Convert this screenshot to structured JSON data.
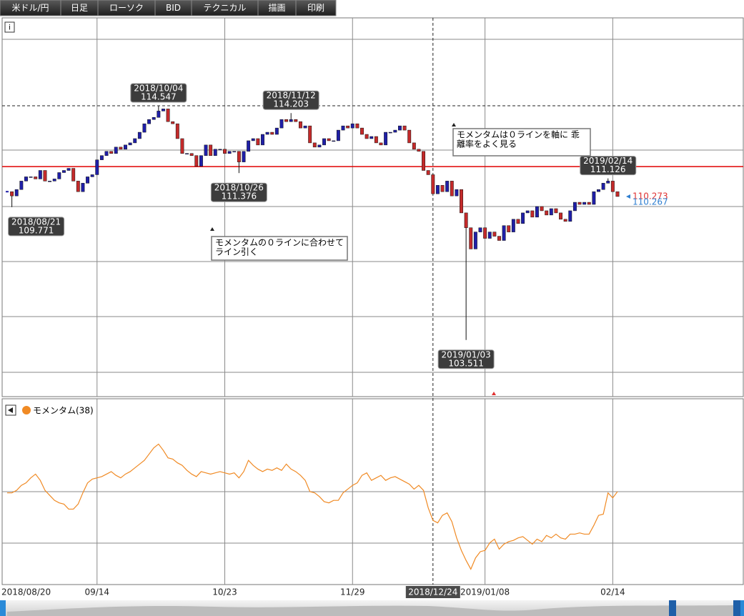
{
  "toolbar": [
    "米ドル/円",
    "日足",
    "ローソク",
    "BID",
    "テクニカル",
    "描画",
    "印刷"
  ],
  "chart_data": {
    "type": "candlestick",
    "categories": [
      "2018/08/20",
      null,
      null,
      null,
      null,
      null,
      null,
      null,
      null,
      null,
      null,
      null,
      null,
      null,
      null,
      null,
      null,
      null,
      null,
      "09/14",
      null,
      null,
      null,
      null,
      null,
      null,
      null,
      null,
      null,
      null,
      null,
      null,
      null,
      null,
      null,
      null,
      null,
      null,
      null,
      null,
      null,
      null,
      null,
      null,
      null,
      null,
      "10/23",
      null,
      null,
      null,
      null,
      null,
      null,
      null,
      null,
      null,
      null,
      null,
      null,
      null,
      null,
      null,
      null,
      null,
      null,
      null,
      null,
      null,
      null,
      null,
      null,
      null,
      null,
      "11/29",
      null,
      null,
      null,
      null,
      null,
      null,
      null,
      null,
      null,
      null,
      null,
      null,
      null,
      null,
      null,
      null,
      "2018/12/24",
      null,
      null,
      null,
      null,
      null,
      null,
      null,
      null,
      null,
      null,
      "2019/01/08",
      null,
      null,
      null,
      null,
      null,
      null,
      null,
      null,
      null,
      null,
      null,
      null,
      null,
      null,
      null,
      null,
      null,
      null,
      null,
      null,
      null,
      null,
      null,
      null,
      null,
      null,
      "02/14",
      null
    ],
    "cursor": "2018/12/24",
    "close": [
      110.5,
      110.3,
      110.6,
      111.0,
      111.2,
      111.2,
      111.1,
      111.5,
      111.0,
      111.0,
      111.1,
      111.4,
      111.5,
      111.6,
      111.0,
      110.5,
      110.9,
      111.2,
      111.3,
      112.0,
      112.2,
      112.4,
      112.3,
      112.6,
      112.5,
      112.7,
      112.8,
      113.0,
      113.3,
      113.7,
      113.9,
      114.0,
      114.3,
      114.4,
      113.8,
      113.7,
      113.0,
      112.3,
      112.3,
      112.2,
      111.7,
      112.2,
      112.7,
      112.2,
      112.5,
      112.5,
      112.3,
      112.4,
      112.4,
      111.9,
      112.4,
      112.9,
      113.0,
      112.7,
      113.2,
      113.3,
      113.2,
      113.5,
      113.9,
      113.8,
      113.9,
      113.8,
      113.5,
      113.6,
      112.8,
      112.6,
      112.7,
      113.0,
      112.9,
      112.9,
      113.4,
      113.6,
      113.5,
      113.7,
      113.5,
      113.2,
      113.0,
      113.1,
      112.8,
      112.7,
      113.3,
      113.3,
      113.4,
      113.6,
      113.4,
      112.8,
      112.5,
      112.4,
      111.5,
      111.3,
      110.4,
      110.8,
      110.5,
      111.0,
      110.3,
      110.6,
      109.5,
      108.8,
      107.8,
      108.6,
      108.8,
      108.3,
      108.6,
      108.4,
      108.2,
      108.9,
      108.6,
      109.2,
      109.0,
      109.5,
      109.6,
      109.3,
      109.8,
      109.6,
      109.4,
      109.7,
      109.5,
      109.2,
      109.1,
      109.6,
      110.0,
      109.9,
      110.0,
      109.9,
      110.5,
      110.6,
      110.9,
      111.0,
      110.5,
      110.273
    ],
    "up_color": "#1f1fa8",
    "down_color": "#c42a2a",
    "ylim": [
      100.91,
      118.69
    ],
    "hline": {
      "value": 111.68,
      "color": "#e00000"
    },
    "annotations": [
      {
        "date": "2018/10/04",
        "value": 114.547
      },
      {
        "date": "2018/11/12",
        "value": 114.203
      },
      {
        "date": "2018/10/26",
        "value": 111.376
      },
      {
        "date": "2018/08/21",
        "value": 109.771
      },
      {
        "date": "2019/01/03",
        "value": 103.511
      },
      {
        "date": "2019/02/14",
        "value": 111.126
      }
    ],
    "price_labels": [
      {
        "value": 110.273,
        "color": "#e03030"
      },
      {
        "value": 110.267,
        "color": "#2f7fd0"
      }
    ],
    "notes": [
      [
        "モメンタムの０ラインに合わせて",
        "ライン引く"
      ],
      [
        "モメンタムは０ラインを軸に 乖",
        "離率をよく見る"
      ]
    ],
    "indicator": {
      "type": "line",
      "name": "モメンタム(38)",
      "color": "#f08a24",
      "baseline": 0,
      "ylim": [
        -7.43,
        7.31
      ],
      "values": [
        -0.1,
        -0.1,
        0.1,
        0.5,
        0.7,
        1.1,
        1.4,
        0.9,
        0.1,
        -0.3,
        -0.7,
        -0.9,
        -1.0,
        -1.4,
        -1.4,
        -1.0,
        -0.1,
        0.7,
        1.0,
        1.1,
        1.2,
        1.4,
        1.6,
        1.3,
        1.1,
        1.4,
        1.6,
        1.9,
        2.2,
        2.5,
        3.0,
        3.5,
        3.8,
        3.3,
        2.7,
        2.6,
        2.3,
        2.1,
        1.7,
        1.4,
        1.2,
        1.6,
        1.5,
        1.4,
        1.5,
        1.6,
        1.5,
        1.4,
        1.5,
        1.1,
        1.6,
        2.5,
        2.1,
        1.8,
        1.6,
        1.8,
        1.7,
        1.9,
        1.7,
        2.2,
        1.8,
        1.6,
        1.3,
        0.9,
        0.0,
        -0.1,
        -0.4,
        -0.8,
        -0.9,
        -0.7,
        -0.7,
        -0.1,
        0.2,
        0.5,
        0.7,
        1.3,
        1.5,
        0.9,
        1.1,
        1.3,
        0.9,
        1.1,
        1.2,
        1.0,
        0.8,
        0.6,
        0.2,
        0.5,
        0.1,
        -1.3,
        -2.3,
        -2.5,
        -1.9,
        -1.7,
        -2.4,
        -3.7,
        -4.7,
        -5.5,
        -6.2,
        -5.3,
        -4.8,
        -4.7,
        -4.1,
        -3.8,
        -4.6,
        -4.2,
        -4.0,
        -3.9,
        -3.7,
        -3.6,
        -3.9,
        -4.2,
        -3.8,
        -4.0,
        -3.5,
        -3.7,
        -3.4,
        -3.7,
        -3.8,
        -3.4,
        -3.4,
        -3.3,
        -3.4,
        -3.4,
        -2.7,
        -1.9,
        -1.8,
        -0.1,
        -0.5,
        0.0
      ]
    }
  }
}
